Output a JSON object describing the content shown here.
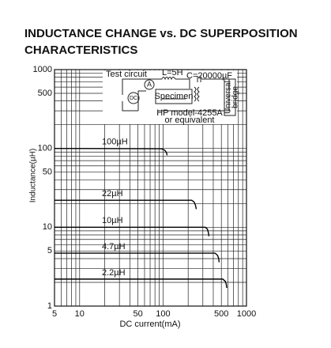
{
  "chart_data": {
    "type": "line",
    "title": [
      "INDUCTANCE CHANGE vs. DC SUPERPOSITION",
      "CHARACTERISTICS"
    ],
    "x_label": "DC current(mA)",
    "y_label": "Inductance(µH)",
    "log_x": true,
    "log_y": true,
    "grid": true,
    "xlim": [
      5,
      1000
    ],
    "ylim": [
      1,
      1000
    ],
    "xticks": [
      5,
      10,
      50,
      100,
      500,
      1000
    ],
    "yticks": [
      1,
      5,
      10,
      50,
      100,
      500,
      1000
    ],
    "xminor": [
      6,
      7,
      8,
      9,
      20,
      30,
      40,
      60,
      70,
      80,
      90,
      200,
      300,
      400,
      600,
      700,
      800,
      900
    ],
    "yminor": [
      2,
      3,
      4,
      6,
      7,
      8,
      9,
      20,
      30,
      40,
      60,
      70,
      80,
      90,
      200,
      300,
      400,
      600,
      700,
      800,
      900
    ],
    "series": [
      {
        "name": "100µH",
        "color": "#000000",
        "x": [
          5,
          95,
          105,
          110,
          112
        ],
        "values": [
          100,
          99,
          95,
          88,
          82
        ]
      },
      {
        "name": "22µH",
        "color": "#000000",
        "x": [
          5,
          220,
          235,
          245,
          250
        ],
        "values": [
          22,
          22,
          21,
          19,
          17
        ]
      },
      {
        "name": "10µH",
        "color": "#000000",
        "x": [
          5,
          320,
          340,
          350,
          355
        ],
        "values": [
          10,
          10,
          9.5,
          8.5,
          7.7
        ]
      },
      {
        "name": "4.7µH",
        "color": "#000000",
        "x": [
          5,
          420,
          450,
          465,
          470
        ],
        "values": [
          4.7,
          4.7,
          4.4,
          4,
          3.6
        ]
      },
      {
        "name": "2.2µH",
        "color": "#000000",
        "x": [
          5,
          520,
          560,
          575,
          580
        ],
        "values": [
          2.2,
          2.2,
          2.05,
          1.85,
          1.7
        ]
      }
    ],
    "test_circuit": {
      "title": "Test circuit",
      "inductor": "L=5H",
      "capacitor": "C=20000µF",
      "specimen": "Specimen",
      "ammeter": "A",
      "source": "DC",
      "bridge": [
        "Universal",
        "bridge"
      ],
      "model": [
        "HP model-4255A",
        "or equivalent"
      ]
    }
  }
}
